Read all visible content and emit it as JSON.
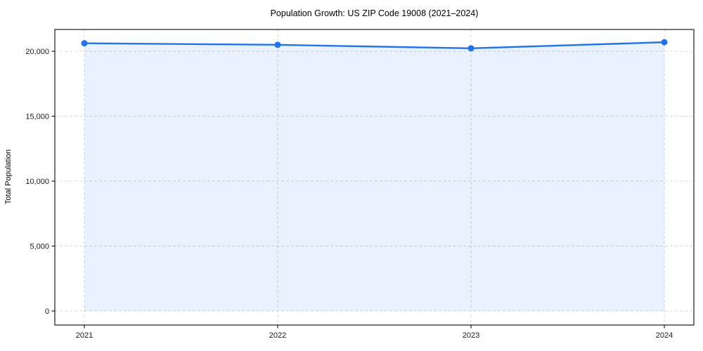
{
  "chart_data": {
    "type": "line",
    "title": "Population Growth: US ZIP Code 19008 (2021–2024)",
    "xlabel": "",
    "ylabel": "Total Population",
    "x": [
      2021,
      2022,
      2023,
      2024
    ],
    "xtick_labels": [
      "2021",
      "2022",
      "2023",
      "2024"
    ],
    "series": [
      {
        "name": "Total Population",
        "values": [
          20620,
          20500,
          20230,
          20700
        ]
      }
    ],
    "area_fill": true,
    "area_baseline": 0,
    "ylim": [
      -1080,
      21680
    ],
    "yticks": [
      0,
      5000,
      10000,
      15000,
      20000
    ],
    "ytick_labels": [
      "0",
      "5,000",
      "10,000",
      "15,000",
      "20,000"
    ],
    "grid": true,
    "grid_style": "dashed",
    "legend_position": "none",
    "colors": {
      "line": "#2273e8",
      "marker": "#2273e8",
      "fill": "rgba(34,115,232,0.10)",
      "grid": "#d9d9d9",
      "spine": "#1a1a1a",
      "text": "#000000",
      "background": "#ffffff"
    }
  }
}
